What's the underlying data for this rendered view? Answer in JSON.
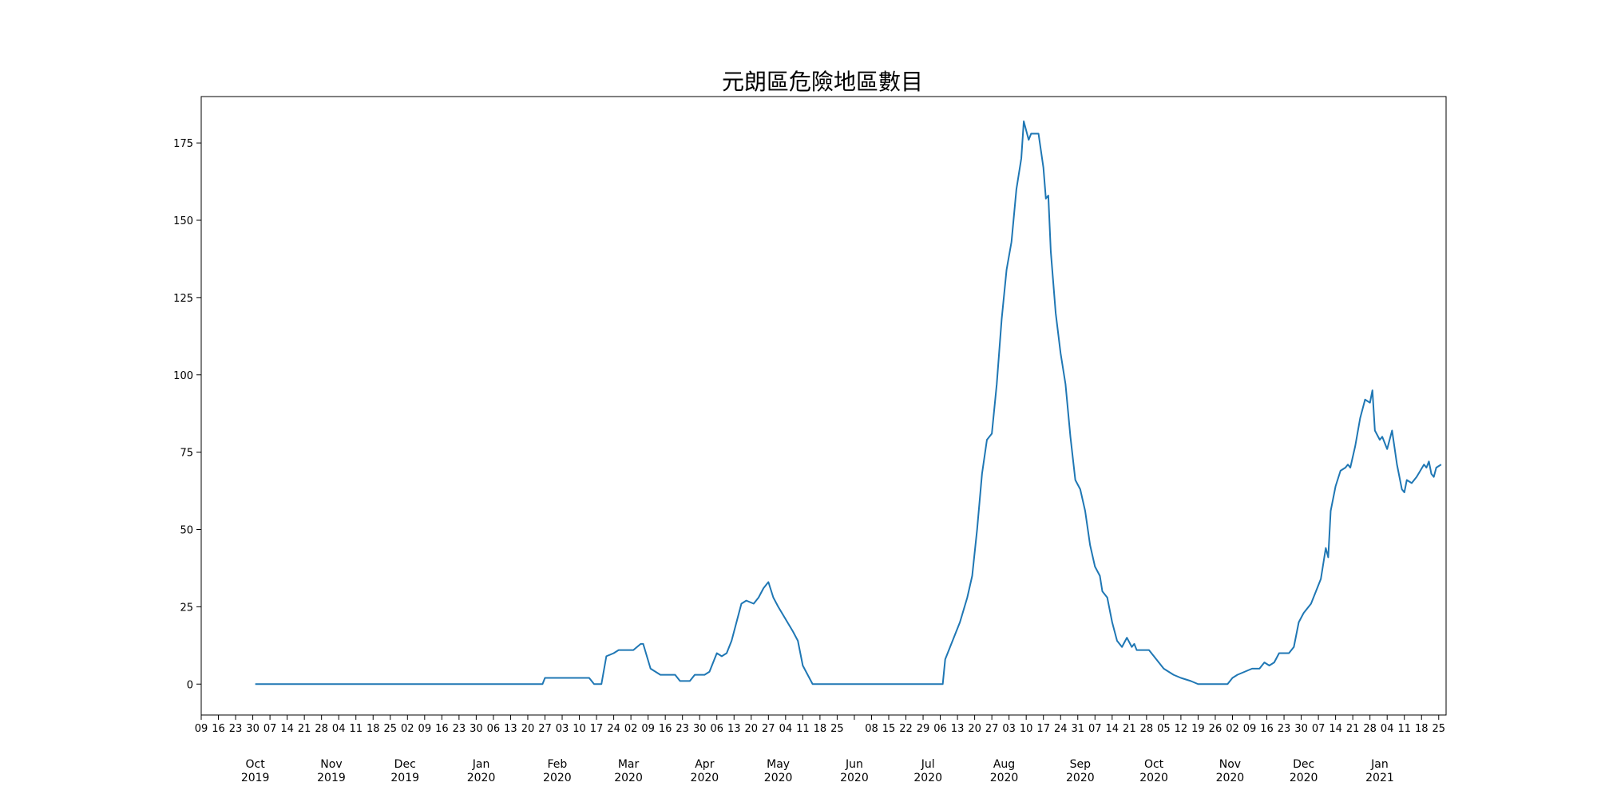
{
  "chart_data": {
    "type": "line",
    "title": "元朗區危險地區數目",
    "xlabel": "",
    "ylabel": "",
    "xlim": [
      "2019-09-09",
      "2021-01-28"
    ],
    "ylim": [
      -10,
      190
    ],
    "grid": false,
    "legend": "none",
    "y_ticks": [
      0,
      25,
      50,
      75,
      100,
      125,
      150,
      175
    ],
    "x_day_ticks": [
      "09",
      "16",
      "23",
      "30",
      "07",
      "14",
      "21",
      "28",
      "04",
      "11",
      "18",
      "25",
      "02",
      "09",
      "16",
      "23",
      "30",
      "06",
      "13",
      "20",
      "27",
      "03",
      "10",
      "17",
      "24",
      "02",
      "09",
      "16",
      "23",
      "30",
      "06",
      "13",
      "20",
      "27",
      "04",
      "11",
      "18",
      "25",
      "",
      "08",
      "15",
      "22",
      "29",
      "06",
      "13",
      "20",
      "27",
      "03",
      "10",
      "17",
      "24",
      "31",
      "07",
      "14",
      "21",
      "28",
      "05",
      "12",
      "19",
      "26",
      "02",
      "09",
      "16",
      "23",
      "30",
      "07",
      "14",
      "21",
      "28",
      "04",
      "11",
      "18",
      "25"
    ],
    "month_labels": [
      {
        "month": "Oct",
        "year": "2019"
      },
      {
        "month": "Nov",
        "year": "2019"
      },
      {
        "month": "Dec",
        "year": "2019"
      },
      {
        "month": "Jan",
        "year": "2020"
      },
      {
        "month": "Feb",
        "year": "2020"
      },
      {
        "month": "Mar",
        "year": "2020"
      },
      {
        "month": "Apr",
        "year": "2020"
      },
      {
        "month": "May",
        "year": "2020"
      },
      {
        "month": "Jun",
        "year": "2020"
      },
      {
        "month": "Jul",
        "year": "2020"
      },
      {
        "month": "Aug",
        "year": "2020"
      },
      {
        "month": "Sep",
        "year": "2020"
      },
      {
        "month": "Oct",
        "year": "2020"
      },
      {
        "month": "Nov",
        "year": "2020"
      },
      {
        "month": "Dec",
        "year": "2020"
      },
      {
        "month": "Jan",
        "year": "2021"
      }
    ],
    "series": [
      {
        "color": "#1f77b4",
        "points": [
          [
            "2019-10-01",
            0
          ],
          [
            "2020-01-26",
            0
          ],
          [
            "2020-01-27",
            2
          ],
          [
            "2020-01-30",
            2
          ],
          [
            "2020-02-14",
            2
          ],
          [
            "2020-02-16",
            0
          ],
          [
            "2020-02-19",
            0
          ],
          [
            "2020-02-21",
            9
          ],
          [
            "2020-02-24",
            10
          ],
          [
            "2020-02-26",
            11
          ],
          [
            "2020-03-03",
            11
          ],
          [
            "2020-03-06",
            13
          ],
          [
            "2020-03-07",
            13
          ],
          [
            "2020-03-10",
            5
          ],
          [
            "2020-03-12",
            4
          ],
          [
            "2020-03-14",
            3
          ],
          [
            "2020-03-20",
            3
          ],
          [
            "2020-03-22",
            1
          ],
          [
            "2020-03-26",
            1
          ],
          [
            "2020-03-28",
            3
          ],
          [
            "2020-04-01",
            3
          ],
          [
            "2020-04-03",
            4
          ],
          [
            "2020-04-06",
            10
          ],
          [
            "2020-04-08",
            9
          ],
          [
            "2020-04-10",
            10
          ],
          [
            "2020-04-12",
            14
          ],
          [
            "2020-04-14",
            20
          ],
          [
            "2020-04-16",
            26
          ],
          [
            "2020-04-18",
            27
          ],
          [
            "2020-04-21",
            26
          ],
          [
            "2020-04-23",
            28
          ],
          [
            "2020-04-25",
            31
          ],
          [
            "2020-04-27",
            33
          ],
          [
            "2020-04-29",
            28
          ],
          [
            "2020-05-01",
            25
          ],
          [
            "2020-05-04",
            21
          ],
          [
            "2020-05-07",
            17
          ],
          [
            "2020-05-09",
            14
          ],
          [
            "2020-05-11",
            6
          ],
          [
            "2020-05-13",
            3
          ],
          [
            "2020-05-15",
            0
          ],
          [
            "2020-07-07",
            0
          ],
          [
            "2020-07-08",
            8
          ],
          [
            "2020-07-10",
            12
          ],
          [
            "2020-07-12",
            16
          ],
          [
            "2020-07-14",
            20
          ],
          [
            "2020-07-17",
            28
          ],
          [
            "2020-07-19",
            35
          ],
          [
            "2020-07-21",
            50
          ],
          [
            "2020-07-23",
            68
          ],
          [
            "2020-07-25",
            79
          ],
          [
            "2020-07-27",
            81
          ],
          [
            "2020-07-29",
            97
          ],
          [
            "2020-07-31",
            118
          ],
          [
            "2020-08-02",
            134
          ],
          [
            "2020-08-04",
            143
          ],
          [
            "2020-08-06",
            160
          ],
          [
            "2020-08-08",
            170
          ],
          [
            "2020-08-09",
            182
          ],
          [
            "2020-08-11",
            176
          ],
          [
            "2020-08-12",
            178
          ],
          [
            "2020-08-15",
            178
          ],
          [
            "2020-08-17",
            167
          ],
          [
            "2020-08-18",
            157
          ],
          [
            "2020-08-19",
            158
          ],
          [
            "2020-08-20",
            140
          ],
          [
            "2020-08-22",
            120
          ],
          [
            "2020-08-24",
            107
          ],
          [
            "2020-08-26",
            97
          ],
          [
            "2020-08-28",
            80
          ],
          [
            "2020-08-30",
            66
          ],
          [
            "2020-09-01",
            63
          ],
          [
            "2020-09-03",
            56
          ],
          [
            "2020-09-05",
            45
          ],
          [
            "2020-09-07",
            38
          ],
          [
            "2020-09-09",
            35
          ],
          [
            "2020-09-10",
            30
          ],
          [
            "2020-09-12",
            28
          ],
          [
            "2020-09-14",
            20
          ],
          [
            "2020-09-16",
            14
          ],
          [
            "2020-09-18",
            12
          ],
          [
            "2020-09-20",
            15
          ],
          [
            "2020-09-22",
            12
          ],
          [
            "2020-09-23",
            13
          ],
          [
            "2020-09-24",
            11
          ],
          [
            "2020-09-29",
            11
          ],
          [
            "2020-10-01",
            9
          ],
          [
            "2020-10-03",
            7
          ],
          [
            "2020-10-05",
            5
          ],
          [
            "2020-10-07",
            4
          ],
          [
            "2020-10-09",
            3
          ],
          [
            "2020-10-12",
            2
          ],
          [
            "2020-10-16",
            1
          ],
          [
            "2020-10-19",
            0
          ],
          [
            "2020-10-31",
            0
          ],
          [
            "2020-11-02",
            2
          ],
          [
            "2020-11-04",
            3
          ],
          [
            "2020-11-07",
            4
          ],
          [
            "2020-11-10",
            5
          ],
          [
            "2020-11-13",
            5
          ],
          [
            "2020-11-15",
            7
          ],
          [
            "2020-11-17",
            6
          ],
          [
            "2020-11-19",
            7
          ],
          [
            "2020-11-21",
            10
          ],
          [
            "2020-11-25",
            10
          ],
          [
            "2020-11-27",
            12
          ],
          [
            "2020-11-29",
            20
          ],
          [
            "2020-12-01",
            23
          ],
          [
            "2020-12-04",
            26
          ],
          [
            "2020-12-06",
            30
          ],
          [
            "2020-12-08",
            34
          ],
          [
            "2020-12-10",
            44
          ],
          [
            "2020-12-11",
            41
          ],
          [
            "2020-12-12",
            56
          ],
          [
            "2020-12-14",
            64
          ],
          [
            "2020-12-16",
            69
          ],
          [
            "2020-12-18",
            70
          ],
          [
            "2020-12-19",
            71
          ],
          [
            "2020-12-20",
            70
          ],
          [
            "2020-12-22",
            77
          ],
          [
            "2020-12-24",
            86
          ],
          [
            "2020-12-26",
            92
          ],
          [
            "2020-12-28",
            91
          ],
          [
            "2020-12-29",
            95
          ],
          [
            "2020-12-30",
            82
          ],
          [
            "2021-01-01",
            79
          ],
          [
            "2021-01-02",
            80
          ],
          [
            "2021-01-04",
            76
          ],
          [
            "2021-01-06",
            82
          ],
          [
            "2021-01-08",
            71
          ],
          [
            "2021-01-10",
            63
          ],
          [
            "2021-01-11",
            62
          ],
          [
            "2021-01-12",
            66
          ],
          [
            "2021-01-14",
            65
          ],
          [
            "2021-01-16",
            67
          ],
          [
            "2021-01-19",
            71
          ],
          [
            "2021-01-20",
            70
          ],
          [
            "2021-01-21",
            72
          ],
          [
            "2021-01-22",
            68
          ],
          [
            "2021-01-23",
            67
          ],
          [
            "2021-01-24",
            70
          ],
          [
            "2021-01-26",
            71
          ]
        ]
      }
    ]
  }
}
